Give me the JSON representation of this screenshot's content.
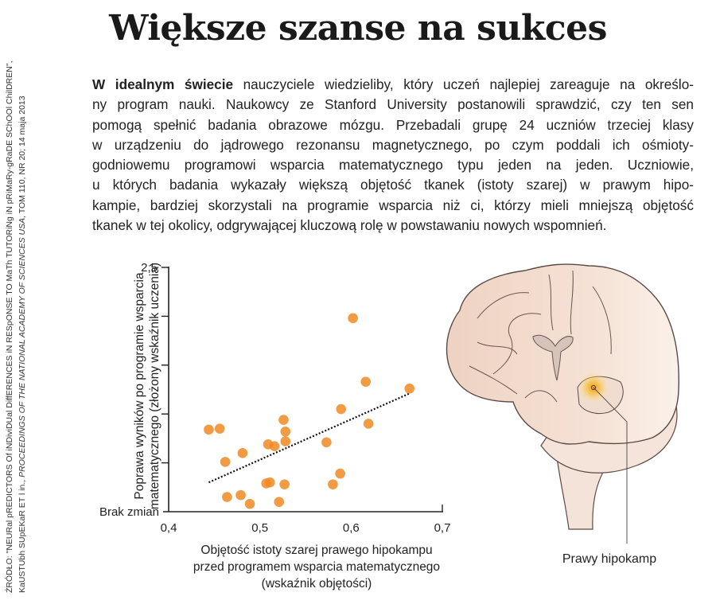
{
  "title": "Większe szanse na sukces",
  "intro": {
    "lead": "W idealnym świecie",
    "lines": [
      " nauczyciele wiedzieliby, który uczeń najlepiej zareaguje na określo-",
      "ny program nauki. Naukowcy ze Stanford University postanowili sprawdzić, czy ten sen",
      "pomogą spełnić badania obrazowe mózgu. Przebadali grupę 24 uczniów trzeciej klasy",
      "w urządzeniu do jądrowego rezonansu magnetycznego, po czym poddali ich ośmioty-",
      "godniowemu programowi wsparcia matematycznego typu jeden na jeden. Uczniowie,",
      "u których badania wykazały większą objętość tkanek (istoty szarej) w prawym hipo-",
      "kampie, bardziej skorzystali na programie wsparcia niż ci, którzy mieli mniejszą objętość",
      "tkanek w tej okolicy, odgrywającej kluczową rolę w powstawaniu nowych wspomnień."
    ]
  },
  "source": {
    "line1": "ŹRÓDŁO: \"NEURal pREDICTORS Of iNDiviDUal DiffERENCES iN RESpONSE TO MaTh TUTORiNg iN pRiMaRy-gRaDE SChOOl ChilDREN\",",
    "line2_a": "KaUSTUbh SUpEKaR ET l in., ",
    "line2_journal": "PROCEEDINGS OF THE NATIONAL ACADEMY OF SCIENCES USA",
    "line2_b": ", TOM 110, NR 20; 14 maja 2013"
  },
  "brain": {
    "label": "Prawy hipokamp",
    "highlight_color": "#f5a623",
    "fill_color": "#f3ddd0"
  },
  "chart_data": {
    "type": "scatter",
    "title": "",
    "xlabel_lines": [
      "Objętość istoty szarej prawego hipokampu",
      "przed programem wsparcia matematycznego",
      "(wskaźnik objętości)"
    ],
    "ylabel_lines": [
      "Poprawa wyników po programie wsparcia",
      "matematycznego (złożony wskaźnik uczenia)"
    ],
    "xlim": [
      0.4,
      0.7
    ],
    "ylim": [
      0,
      2.5
    ],
    "x_ticks": [
      0.4,
      0.5,
      0.6,
      0.7
    ],
    "x_tick_labels": [
      "0,4",
      "0,5",
      "0,6",
      "0,7"
    ],
    "y_ticks": [
      0,
      0.5,
      1.0,
      1.5,
      2.0,
      2.5
    ],
    "y_tick_labels": {
      "top": "2,5",
      "zero": "Brak zmian"
    },
    "grid": false,
    "point_color": "#f08a24",
    "points": [
      {
        "x": 0.602,
        "y": 1.98
      },
      {
        "x": 0.616,
        "y": 1.33
      },
      {
        "x": 0.664,
        "y": 1.26
      },
      {
        "x": 0.589,
        "y": 1.05
      },
      {
        "x": 0.619,
        "y": 0.9
      },
      {
        "x": 0.526,
        "y": 0.94
      },
      {
        "x": 0.528,
        "y": 0.82
      },
      {
        "x": 0.528,
        "y": 0.72
      },
      {
        "x": 0.573,
        "y": 0.71
      },
      {
        "x": 0.509,
        "y": 0.69
      },
      {
        "x": 0.516,
        "y": 0.67
      },
      {
        "x": 0.444,
        "y": 0.84
      },
      {
        "x": 0.456,
        "y": 0.85
      },
      {
        "x": 0.481,
        "y": 0.6
      },
      {
        "x": 0.462,
        "y": 0.51
      },
      {
        "x": 0.588,
        "y": 0.39
      },
      {
        "x": 0.58,
        "y": 0.28
      },
      {
        "x": 0.507,
        "y": 0.29
      },
      {
        "x": 0.511,
        "y": 0.3
      },
      {
        "x": 0.527,
        "y": 0.28
      },
      {
        "x": 0.464,
        "y": 0.15
      },
      {
        "x": 0.479,
        "y": 0.17
      },
      {
        "x": 0.489,
        "y": 0.08
      },
      {
        "x": 0.521,
        "y": 0.1
      }
    ],
    "trendline": {
      "style": "dotted",
      "from": {
        "x": 0.444,
        "y": 0.3
      },
      "to": {
        "x": 0.664,
        "y": 1.21
      }
    }
  }
}
